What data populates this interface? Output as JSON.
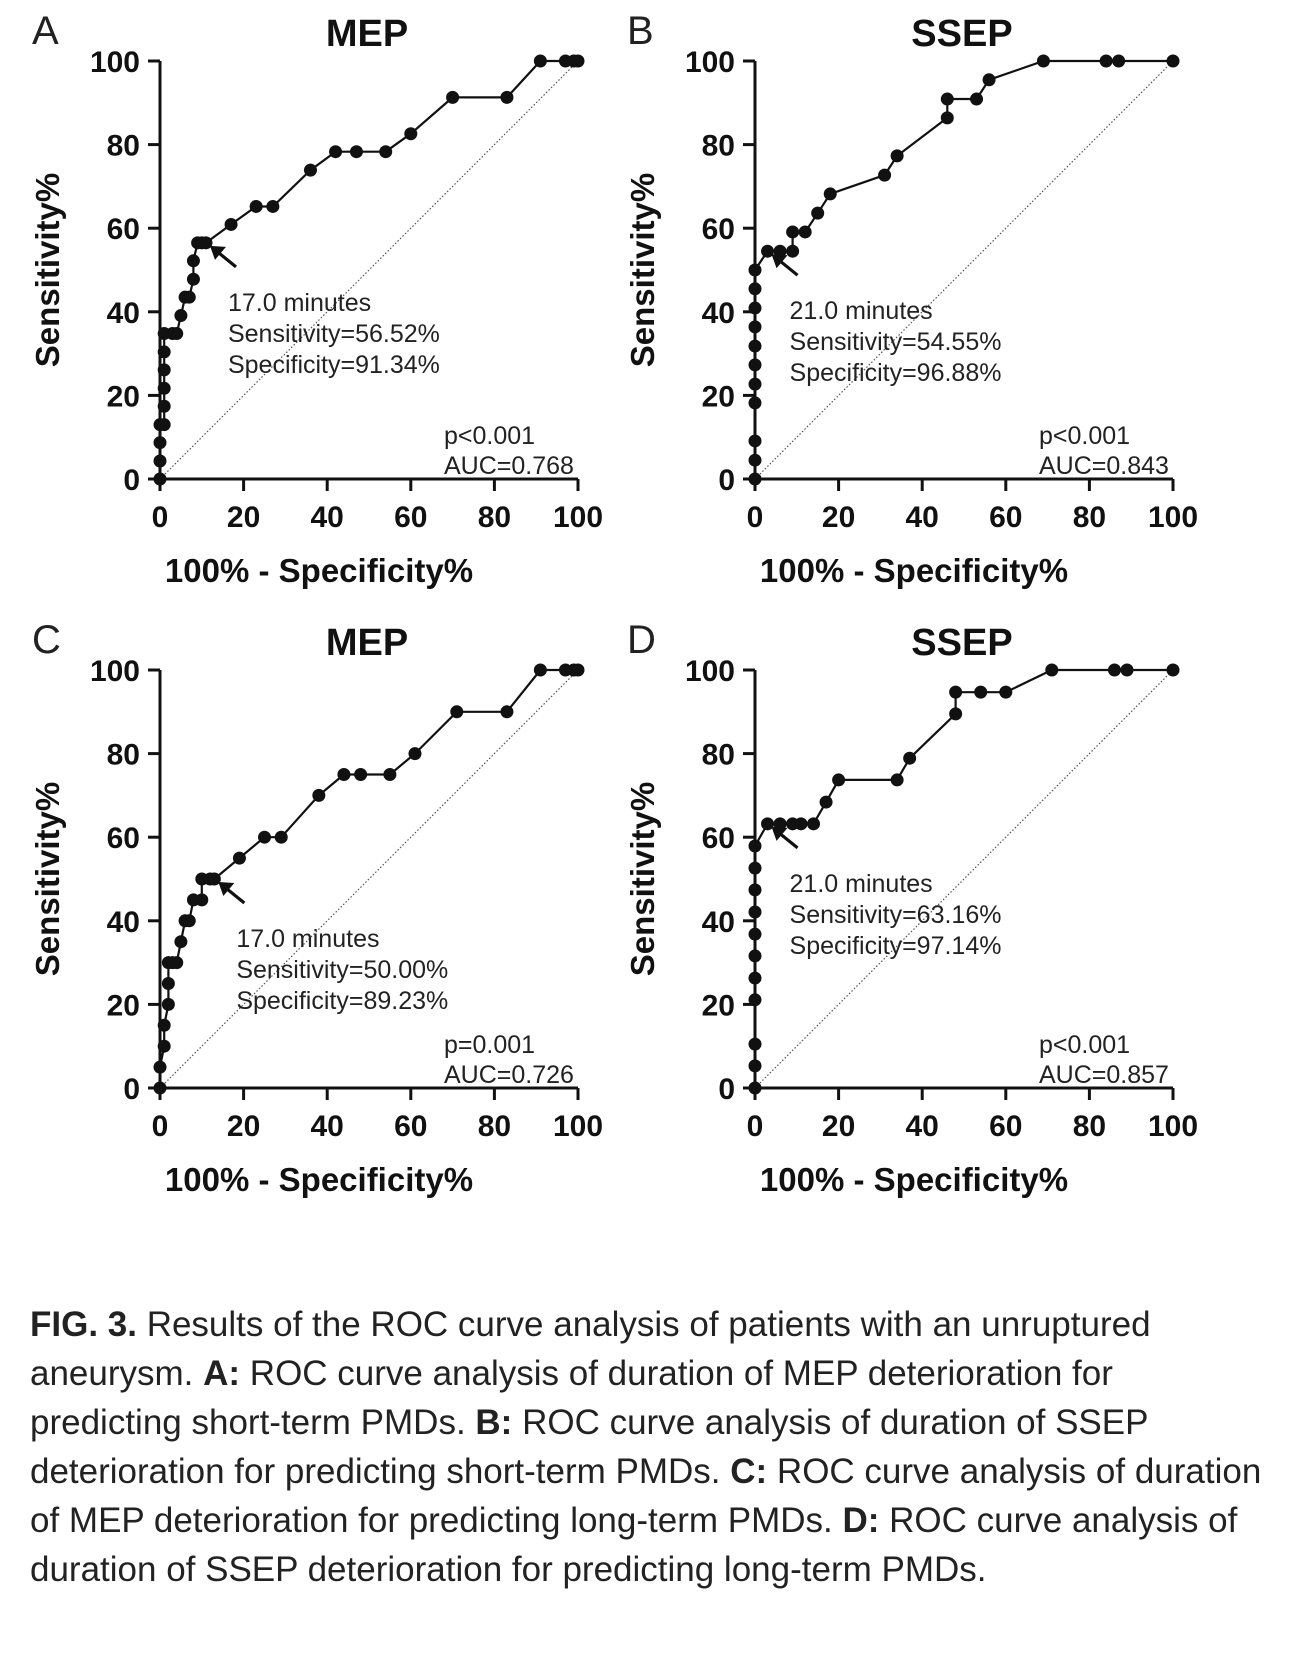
{
  "figure": {
    "label": "FIG. 3.",
    "caption_parts": [
      {
        "b": false,
        "t": " Results of the ROC curve analysis of patients with an unruptured aneurysm. "
      },
      {
        "b": true,
        "t": "A:"
      },
      {
        "b": false,
        "t": " ROC curve analysis of duration of MEP deterioration for predicting short-term PMDs. "
      },
      {
        "b": true,
        "t": "B:"
      },
      {
        "b": false,
        "t": " ROC curve analysis of duration of SSEP deterioration for predicting short-term PMDs. "
      },
      {
        "b": true,
        "t": "C:"
      },
      {
        "b": false,
        "t": " ROC curve analysis of duration of MEP deterioration for predicting long-term PMDs. "
      },
      {
        "b": true,
        "t": "D:"
      },
      {
        "b": false,
        "t": " ROC curve analysis of duration of SSEP deterioration for predicting long-term PMDs."
      }
    ]
  },
  "chart_data": [
    {
      "panel": "A",
      "type": "line",
      "title": "MEP",
      "xlabel": "100% - Specificity%",
      "ylabel": "Sensitivity%",
      "xlim": [
        0,
        100
      ],
      "ylim": [
        0,
        100
      ],
      "xticks": [
        0,
        20,
        40,
        60,
        80,
        100
      ],
      "yticks": [
        0,
        20,
        40,
        60,
        80,
        100
      ],
      "reference_line": true,
      "series": [
        {
          "points": [
            [
              0,
              0
            ],
            [
              0,
              4.3
            ],
            [
              0,
              8.7
            ],
            [
              0,
              13
            ],
            [
              1,
              13
            ],
            [
              1,
              17.4
            ],
            [
              1,
              21.7
            ],
            [
              1,
              26.1
            ],
            [
              1,
              30.4
            ],
            [
              1,
              34.8
            ],
            [
              3,
              34.8
            ],
            [
              4,
              34.8
            ],
            [
              5,
              39.1
            ],
            [
              6,
              43.5
            ],
            [
              7,
              43.5
            ],
            [
              8,
              47.8
            ],
            [
              8,
              52.2
            ],
            [
              9,
              56.5
            ],
            [
              10,
              56.5
            ],
            [
              11,
              56.5
            ],
            [
              17,
              60.9
            ],
            [
              23,
              65.2
            ],
            [
              27,
              65.2
            ],
            [
              36,
              73.9
            ],
            [
              42,
              78.3
            ],
            [
              47,
              78.3
            ],
            [
              54,
              78.3
            ],
            [
              60,
              82.6
            ],
            [
              70,
              91.3
            ],
            [
              83,
              91.3
            ],
            [
              91,
              100
            ],
            [
              97,
              100
            ],
            [
              99,
              100
            ],
            [
              100,
              100
            ]
          ]
        }
      ],
      "cutoff": {
        "point": [
          11,
          56.5
        ],
        "lines": [
          "17.0 minutes",
          "Sensitivity=56.52%",
          "Specificity=91.34%"
        ]
      },
      "stats": [
        "p<0.001",
        "AUC=0.768"
      ]
    },
    {
      "panel": "B",
      "type": "line",
      "title": "SSEP",
      "xlabel": "100% - Specificity%",
      "ylabel": "Sensitivity%",
      "xlim": [
        0,
        100
      ],
      "ylim": [
        0,
        100
      ],
      "xticks": [
        0,
        20,
        40,
        60,
        80,
        100
      ],
      "yticks": [
        0,
        20,
        40,
        60,
        80,
        100
      ],
      "reference_line": true,
      "series": [
        {
          "points": [
            [
              0,
              0
            ],
            [
              0,
              4.5
            ],
            [
              0,
              9.1
            ],
            [
              0,
              18.2
            ],
            [
              0,
              22.7
            ],
            [
              0,
              27.3
            ],
            [
              0,
              31.8
            ],
            [
              0,
              36.4
            ],
            [
              0,
              40.9
            ],
            [
              0,
              45.5
            ],
            [
              0,
              50
            ],
            [
              3,
              54.5
            ],
            [
              6,
              54.5
            ],
            [
              9,
              54.5
            ],
            [
              9,
              59.1
            ],
            [
              12,
              59.1
            ],
            [
              15,
              63.6
            ],
            [
              18,
              68.2
            ],
            [
              31,
              72.7
            ],
            [
              34,
              77.3
            ],
            [
              46,
              86.4
            ],
            [
              46,
              90.9
            ],
            [
              53,
              90.9
            ],
            [
              56,
              95.5
            ],
            [
              69,
              100
            ],
            [
              84,
              100
            ],
            [
              87,
              100
            ],
            [
              100,
              100
            ]
          ]
        }
      ],
      "cutoff": {
        "point": [
          3,
          54.5
        ],
        "lines": [
          "21.0 minutes",
          "Sensitivity=54.55%",
          "Specificity=96.88%"
        ]
      },
      "stats": [
        "p<0.001",
        "AUC=0.843"
      ]
    },
    {
      "panel": "C",
      "type": "line",
      "title": "MEP",
      "xlabel": "100% - Specificity%",
      "ylabel": "Sensitivity%",
      "xlim": [
        0,
        100
      ],
      "ylim": [
        0,
        100
      ],
      "xticks": [
        0,
        20,
        40,
        60,
        80,
        100
      ],
      "yticks": [
        0,
        20,
        40,
        60,
        80,
        100
      ],
      "reference_line": true,
      "series": [
        {
          "points": [
            [
              0,
              0
            ],
            [
              0,
              5
            ],
            [
              1,
              10
            ],
            [
              1,
              15
            ],
            [
              2,
              20
            ],
            [
              2,
              25
            ],
            [
              2,
              30
            ],
            [
              3,
              30
            ],
            [
              4,
              30
            ],
            [
              5,
              35
            ],
            [
              6,
              40
            ],
            [
              7,
              40
            ],
            [
              8,
              45
            ],
            [
              10,
              45
            ],
            [
              10,
              50
            ],
            [
              12,
              50
            ],
            [
              13,
              50
            ],
            [
              19,
              55
            ],
            [
              25,
              60
            ],
            [
              29,
              60
            ],
            [
              38,
              70
            ],
            [
              44,
              75
            ],
            [
              48,
              75
            ],
            [
              55,
              75
            ],
            [
              61,
              80
            ],
            [
              71,
              90
            ],
            [
              83,
              90
            ],
            [
              91,
              100
            ],
            [
              97,
              100
            ],
            [
              99,
              100
            ],
            [
              100,
              100
            ]
          ]
        }
      ],
      "cutoff": {
        "point": [
          13,
          50
        ],
        "lines": [
          "17.0 minutes",
          "Sensitivity=50.00%",
          "Specificity=89.23%"
        ]
      },
      "stats": [
        "p=0.001",
        "AUC=0.726"
      ]
    },
    {
      "panel": "D",
      "type": "line",
      "title": "SSEP",
      "xlabel": "100% - Specificity%",
      "ylabel": "Sensitivity%",
      "xlim": [
        0,
        100
      ],
      "ylim": [
        0,
        100
      ],
      "xticks": [
        0,
        20,
        40,
        60,
        80,
        100
      ],
      "yticks": [
        0,
        20,
        40,
        60,
        80,
        100
      ],
      "reference_line": true,
      "series": [
        {
          "points": [
            [
              0,
              0
            ],
            [
              0,
              5.3
            ],
            [
              0,
              10.5
            ],
            [
              0,
              21.1
            ],
            [
              0,
              26.3
            ],
            [
              0,
              31.6
            ],
            [
              0,
              36.8
            ],
            [
              0,
              42.1
            ],
            [
              0,
              47.4
            ],
            [
              0,
              52.6
            ],
            [
              0,
              57.9
            ],
            [
              3,
              63.2
            ],
            [
              6,
              63.2
            ],
            [
              9,
              63.2
            ],
            [
              11,
              63.2
            ],
            [
              14,
              63.2
            ],
            [
              17,
              68.4
            ],
            [
              20,
              73.7
            ],
            [
              34,
              73.7
            ],
            [
              37,
              78.9
            ],
            [
              48,
              89.5
            ],
            [
              48,
              94.7
            ],
            [
              54,
              94.7
            ],
            [
              60,
              94.7
            ],
            [
              71,
              100
            ],
            [
              86,
              100
            ],
            [
              89,
              100
            ],
            [
              100,
              100
            ]
          ]
        }
      ],
      "cutoff": {
        "point": [
          3,
          63.2
        ],
        "lines": [
          "21.0 minutes",
          "Sensitivity=63.16%",
          "Specificity=97.14%"
        ]
      },
      "stats": [
        "p<0.001",
        "AUC=0.857"
      ]
    }
  ]
}
